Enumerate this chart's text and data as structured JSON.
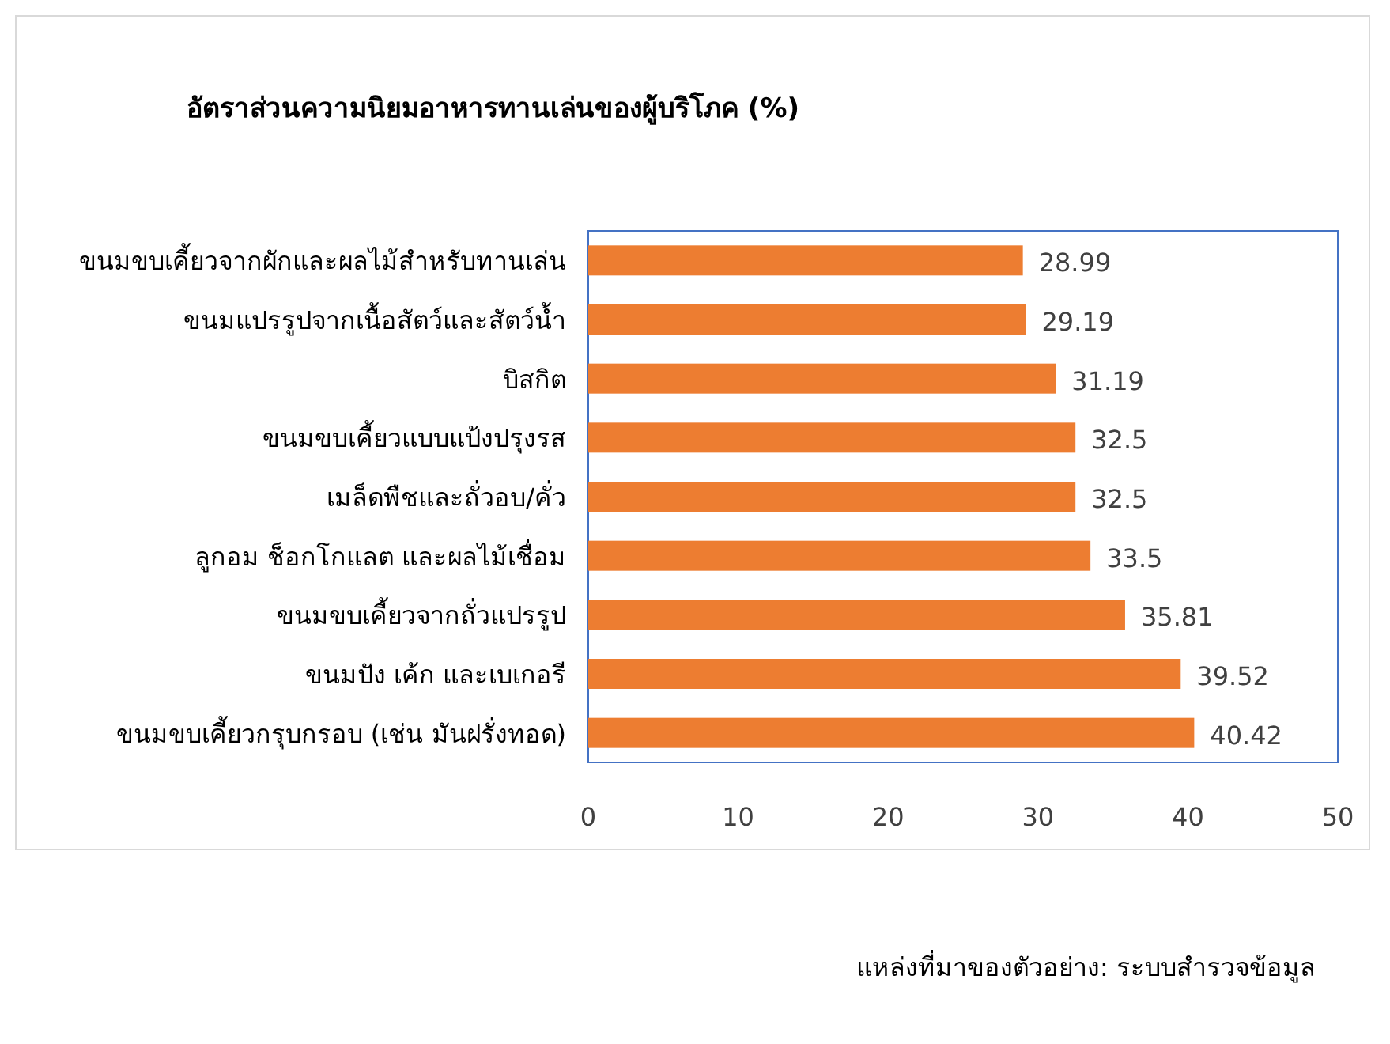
{
  "chart_data": {
    "type": "bar",
    "orientation": "horizontal",
    "title": "อัตราส่วนความนิยมอาหารทานเล่นของผู้บริโภค (%)",
    "categories": [
      "ขนมขบเคี้ยวจากผักและผลไม้สำหรับทานเล่น",
      "ขนมแปรรูปจากเนื้อสัตว์และสัตว์น้ำ",
      "บิสกิต",
      "ขนมขบเคี้ยวแบบแป้งปรุงรส",
      "เมล็ดพืชและถั่วอบ/คั่ว",
      "ลูกอม ช็อกโกแลต และผลไม้เชื่อม",
      "ขนมขบเคี้ยวจากถั่วแปรรูป",
      "ขนมปัง เค้ก และเบเกอรี",
      "ขนมขบเคี้ยวกรุบกรอบ (เช่น มันฝรั่งทอด)"
    ],
    "values": [
      28.99,
      29.19,
      31.19,
      32.5,
      32.5,
      33.5,
      35.81,
      39.52,
      40.42
    ],
    "color": "#ed7d31",
    "data_labels": true,
    "xlim": [
      0,
      50
    ],
    "xticks": [
      0,
      10,
      20,
      30,
      40,
      50
    ],
    "annotations": [
      "แหล่งที่มาของตัวอย่าง: ระบบสำรวจข้อมูล"
    ]
  }
}
